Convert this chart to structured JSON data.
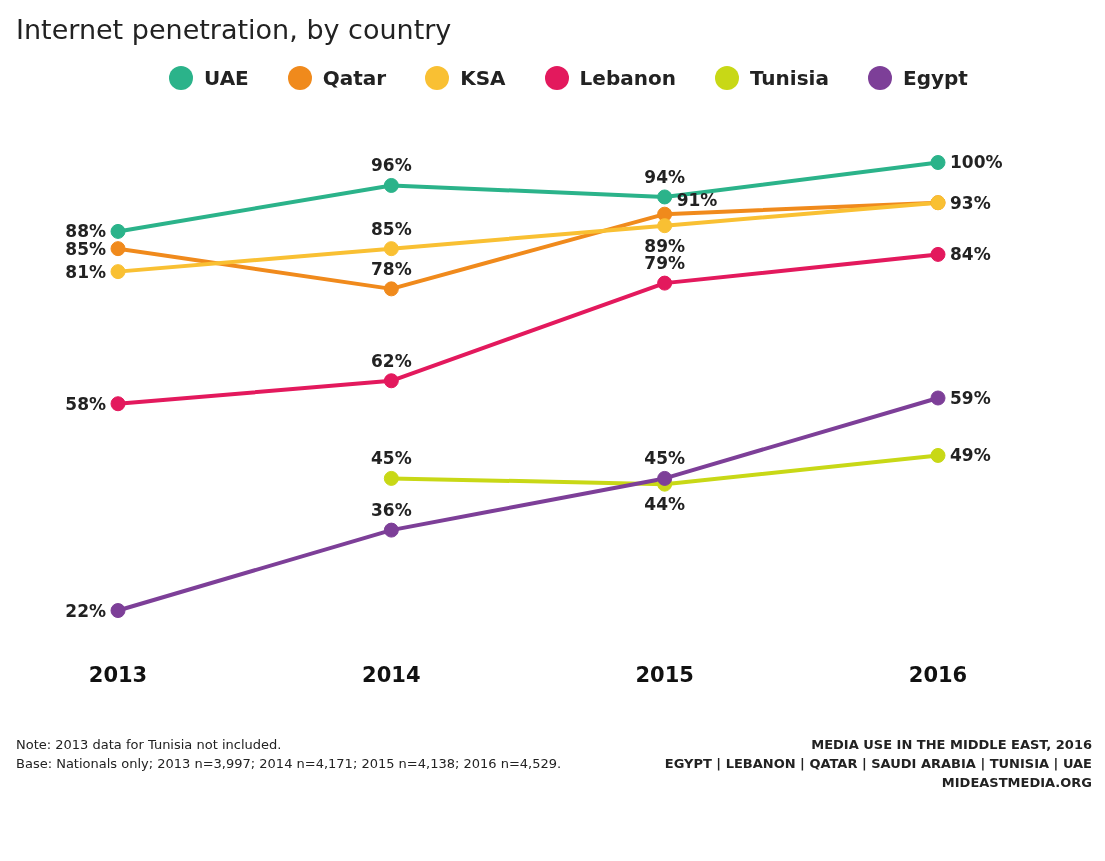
{
  "chart_data": {
    "type": "line",
    "title": "Internet penetration, by country",
    "categories": [
      "2013",
      "2014",
      "2015",
      "2016"
    ],
    "legend": "top left",
    "marker": "circle",
    "line_style": "solid",
    "grid": false,
    "series": [
      {
        "name": "UAE",
        "color": "#2bb38a",
        "values": [
          88,
          96,
          94,
          100
        ],
        "value_labels": [
          "88%",
          "96%",
          "94%",
          "100%"
        ]
      },
      {
        "name": "Qatar",
        "color": "#f08a1c",
        "values": [
          85,
          78,
          91,
          93
        ],
        "value_labels": [
          "85%",
          "78%",
          "91%",
          null
        ]
      },
      {
        "name": "KSA",
        "color": "#f9c033",
        "values": [
          81,
          85,
          89,
          93
        ],
        "value_labels": [
          "81%",
          "85%",
          "89%",
          "93%"
        ]
      },
      {
        "name": "Lebanon",
        "color": "#e3195d",
        "values": [
          58,
          62,
          79,
          84
        ],
        "value_labels": [
          "58%",
          "62%",
          "79%",
          "84%"
        ]
      },
      {
        "name": "Tunisia",
        "color": "#c8d816",
        "values": [
          null,
          45,
          44,
          49
        ],
        "value_labels": [
          null,
          "45%",
          "44%",
          "49%"
        ]
      },
      {
        "name": "Egypt",
        "color": "#7d3f98",
        "values": [
          22,
          36,
          45,
          59
        ],
        "value_labels": [
          "22%",
          "36%",
          "45%",
          "59%"
        ]
      }
    ],
    "annotations": [
      "Note: 2013 data for Tunisia not included.",
      "Base: Nationals only; 2013 n=3,997; 2014 n=4,171; 2015 n=4,138; 2016 n=4,529.",
      "MEDIA USE IN THE MIDDLE EAST, 2016",
      "EGYPT | LEBANON | QATAR | SAUDI ARABIA | TUNISIA | UAE",
      "MIDEASTMEDIA.ORG"
    ]
  }
}
